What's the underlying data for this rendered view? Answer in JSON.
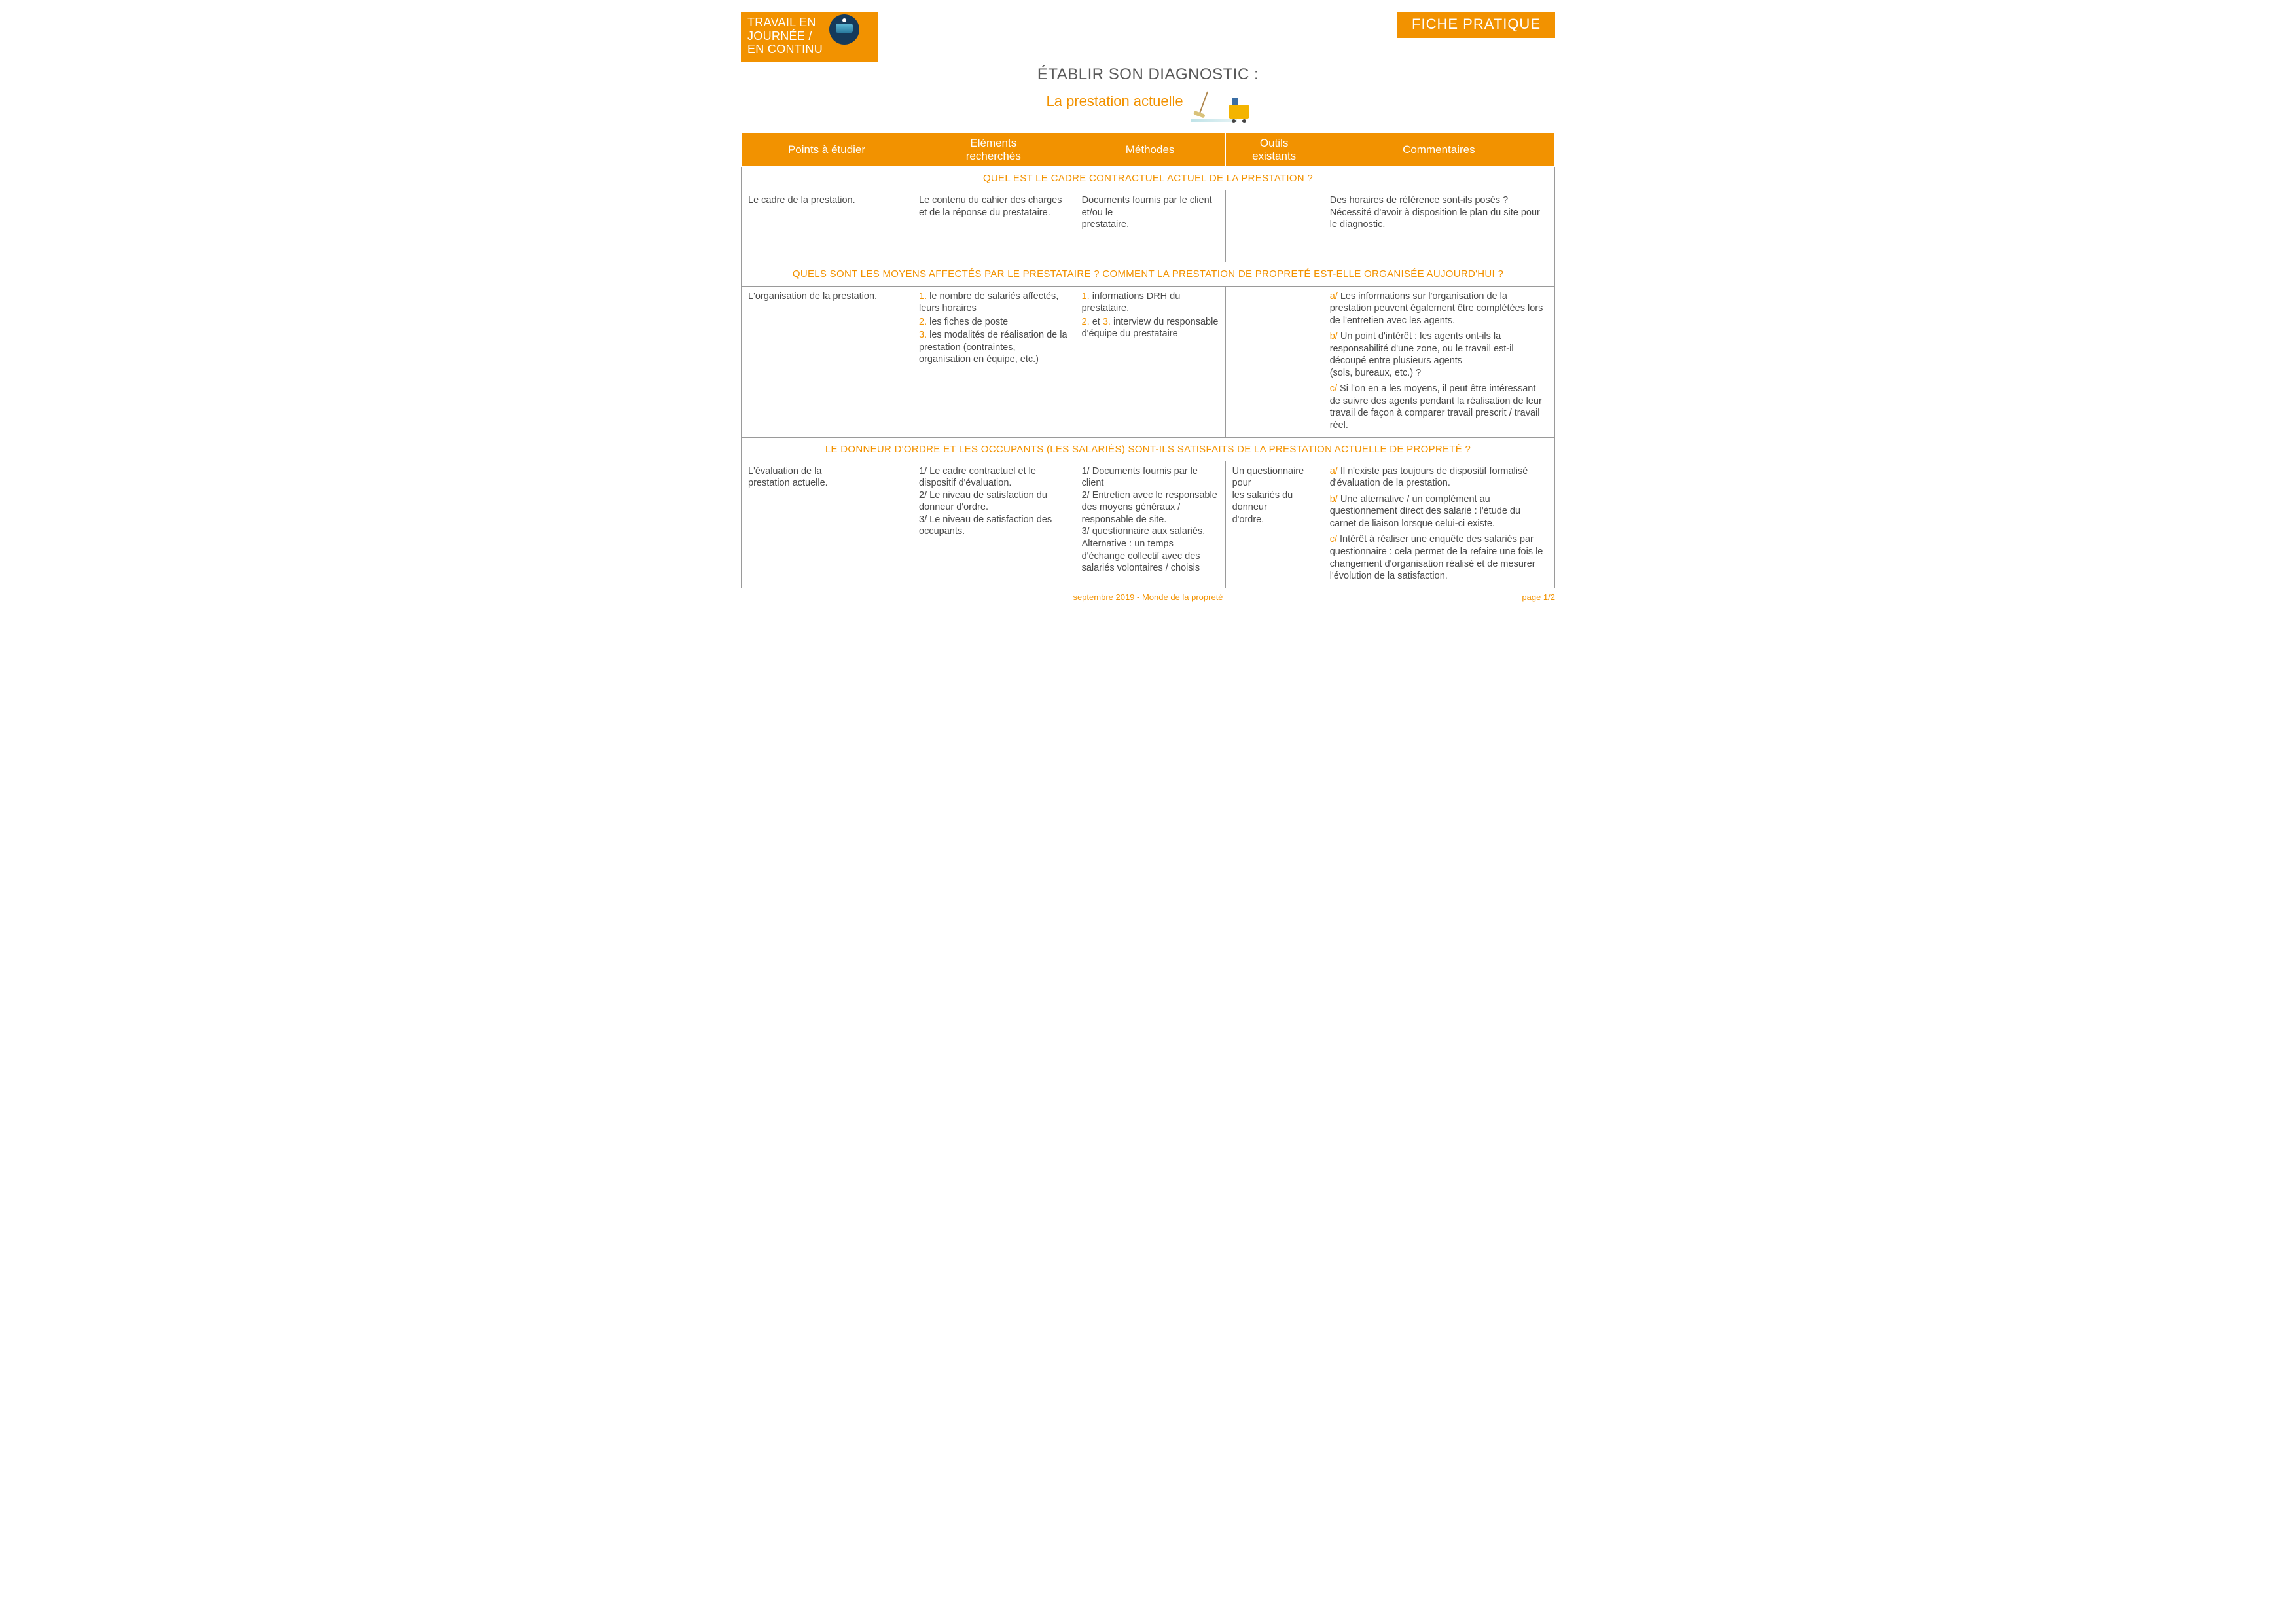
{
  "colors": {
    "accent": "#f29200",
    "text": "#4a4a4a",
    "border": "#9a9a9a",
    "white": "#ffffff"
  },
  "header": {
    "category_line1": "TRAVAIL EN",
    "category_line2": "JOURNÉE /",
    "category_line3": "EN CONTINU",
    "doc_type": "FICHE PRATIQUE",
    "title_main": "ÉTABLIR SON DIAGNOSTIC :",
    "title_sub": "La prestation actuelle"
  },
  "table": {
    "columns": {
      "c1": "Points à étudier",
      "c2": "Eléments\nrecherchés",
      "c3": "Méthodes",
      "c4": "Outils\nexistants",
      "c5": "Commentaires"
    },
    "col_widths_pct": [
      21,
      20,
      18.5,
      12,
      28.5
    ],
    "sections": [
      {
        "title": "QUEL EST LE CADRE CONTRACTUEL ACTUEL DE LA PRESTATION ?",
        "row": {
          "points": "Le cadre de la prestation.",
          "elements_plain": "Le contenu du cahier des charges et de la réponse du prestataire.",
          "methodes_plain": "Documents fournis par le client et/ou le\nprestataire.",
          "outils": "",
          "comments_plain": "Des horaires de référence sont-ils posés ?\nNécessité d'avoir à disposition le plan du site pour le diagnostic."
        }
      },
      {
        "title": "QUELS SONT LES MOYENS AFFECTÉS PAR LE PRESTATAIRE ? COMMENT LA PRESTATION DE PROPRETÉ EST-ELLE ORGANISÉE AUJOURD'HUI ?",
        "row": {
          "points": "L'organisation de la prestation.",
          "elements_items": [
            {
              "n": "1.",
              "t": " le nombre de salariés affectés, leurs horaires"
            },
            {
              "n": "2.",
              "t": "  les fiches de poste"
            },
            {
              "n": "3.",
              "t": "  les modalités de réalisation de la prestation (contraintes, organisation en équipe, etc.)"
            }
          ],
          "methodes_items": [
            {
              "n": "1.",
              "t": " informations DRH du prestataire."
            },
            {
              "n": "2.",
              "post": " et ",
              "n2": "3.",
              "t": " interview du responsable d'équipe du prestataire"
            }
          ],
          "outils": "",
          "comments_items": [
            {
              "n": "a/",
              "t": " Les informations sur l'organisation de la prestation peuvent également être complétées lors de l'entretien avec les agents."
            },
            {
              "n": "b/",
              "t": " Un point d'intérêt : les agents ont-ils la responsabilité d'une zone, ou le travail est-il découpé entre plusieurs agents\n(sols, bureaux, etc.) ?"
            },
            {
              "n": "c/",
              "t": " Si l'on en a les moyens, il peut être intéressant de suivre des agents pendant la réalisation de leur travail de façon à comparer travail prescrit / travail réel."
            }
          ]
        }
      },
      {
        "title": "LE DONNEUR D'ORDRE ET LES OCCUPANTS (LES SALARIÉS) SONT-ILS SATISFAITS DE LA PRESTATION ACTUELLE DE PROPRETÉ ?",
        "row": {
          "points": "L'évaluation de la\nprestation actuelle.",
          "elements_plain": "1/ Le cadre contractuel et le dispositif d'évaluation.\n2/ Le niveau de satisfaction du donneur d'ordre.\n3/ Le niveau de satisfaction des occupants.",
          "methodes_plain": "1/ Documents fournis par le client\n2/ Entretien avec le responsable des moyens généraux / responsable de site.\n3/ questionnaire aux salariés. Alternative : un temps d'échange collectif avec des salariés volontaires / choisis",
          "outils": "Un questionnaire pour\nles salariés du donneur\nd'ordre.",
          "comments_items": [
            {
              "n": "a/",
              "t": " Il n'existe pas toujours de dispositif formalisé d'évaluation de la prestation."
            },
            {
              "n": "b/",
              "t": " Une alternative / un complément au questionnement direct des salarié : l'étude du carnet de liaison lorsque celui-ci existe."
            },
            {
              "n": "c/",
              "t": " Intérêt à réaliser une enquête des salariés par questionnaire : cela permet de la refaire une fois le changement d'organisation réalisé et de mesurer l'évolution de la satisfaction."
            }
          ]
        }
      }
    ]
  },
  "footer": {
    "left": "septembre 2019 - Monde de la propreté",
    "right": "page 1/2"
  }
}
